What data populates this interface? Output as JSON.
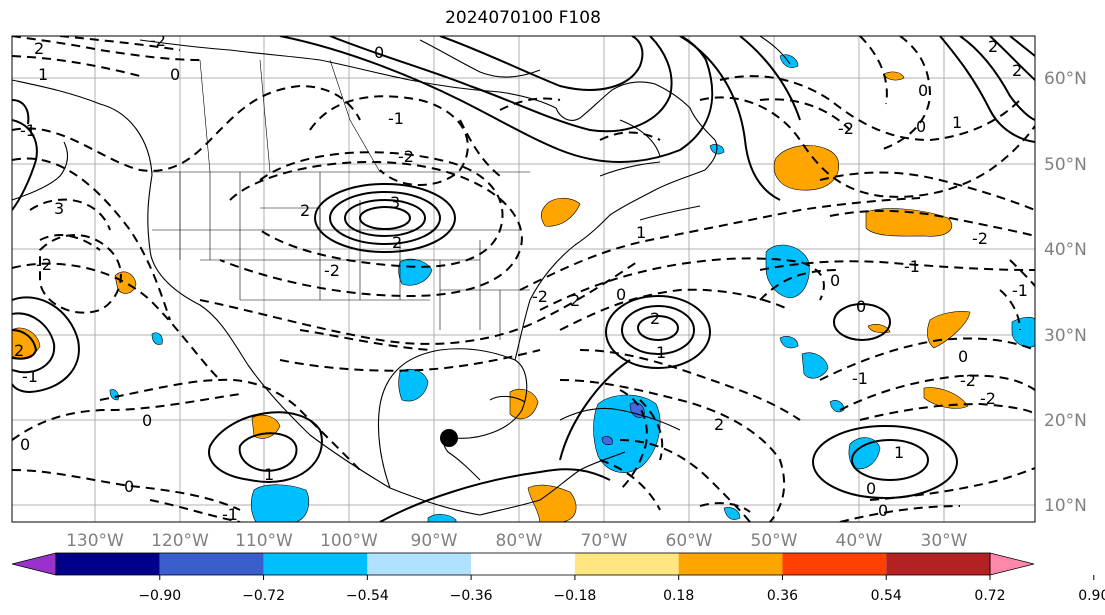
{
  "title": "2024070100 F108",
  "map": {
    "lon_labels": [
      "130°W",
      "120°W",
      "110°W",
      "100°W",
      "90°W",
      "80°W",
      "70°W",
      "60°W",
      "50°W",
      "40°W",
      "30°W"
    ],
    "lat_labels": [
      "60°N",
      "50°N",
      "40°N",
      "30°N",
      "20°N",
      "10°N"
    ],
    "contour_labels": [
      "2",
      "1",
      "0",
      "-2",
      "-1",
      "-2",
      "3",
      "2",
      "3",
      "-2",
      "2",
      "0",
      "-1",
      "-2",
      "-2",
      "2",
      "1",
      "0",
      "1",
      "0",
      "2",
      "-2",
      "-1",
      "-2",
      "-2",
      "0",
      "-1",
      "0",
      "-1",
      "-2",
      "2",
      "0",
      "2",
      "1",
      "0",
      "2",
      "1",
      "0",
      "0",
      "1",
      "-1",
      "0",
      "0",
      "0",
      "-1",
      "2"
    ],
    "colors": {
      "land_line": "#000000",
      "grid": "#b0b0b0",
      "positive_fill": "#ffa500",
      "negative_fill": "#00bfff",
      "strong_negative_fill": "#4169e1"
    },
    "marker": "storm-position-dot"
  },
  "colorbar": {
    "tick_labels": [
      "−0.90",
      "−0.72",
      "−0.54",
      "−0.36",
      "−0.18",
      "0.18",
      "0.36",
      "0.54",
      "0.72",
      "0.90"
    ],
    "colors": [
      "#9932cc",
      "#00008b",
      "#3a5fcd",
      "#00bfff",
      "#b0e2ff",
      "#ffffff",
      "#ffe680",
      "#ffa500",
      "#ff4000",
      "#b22222",
      "#ff88aa"
    ]
  }
}
